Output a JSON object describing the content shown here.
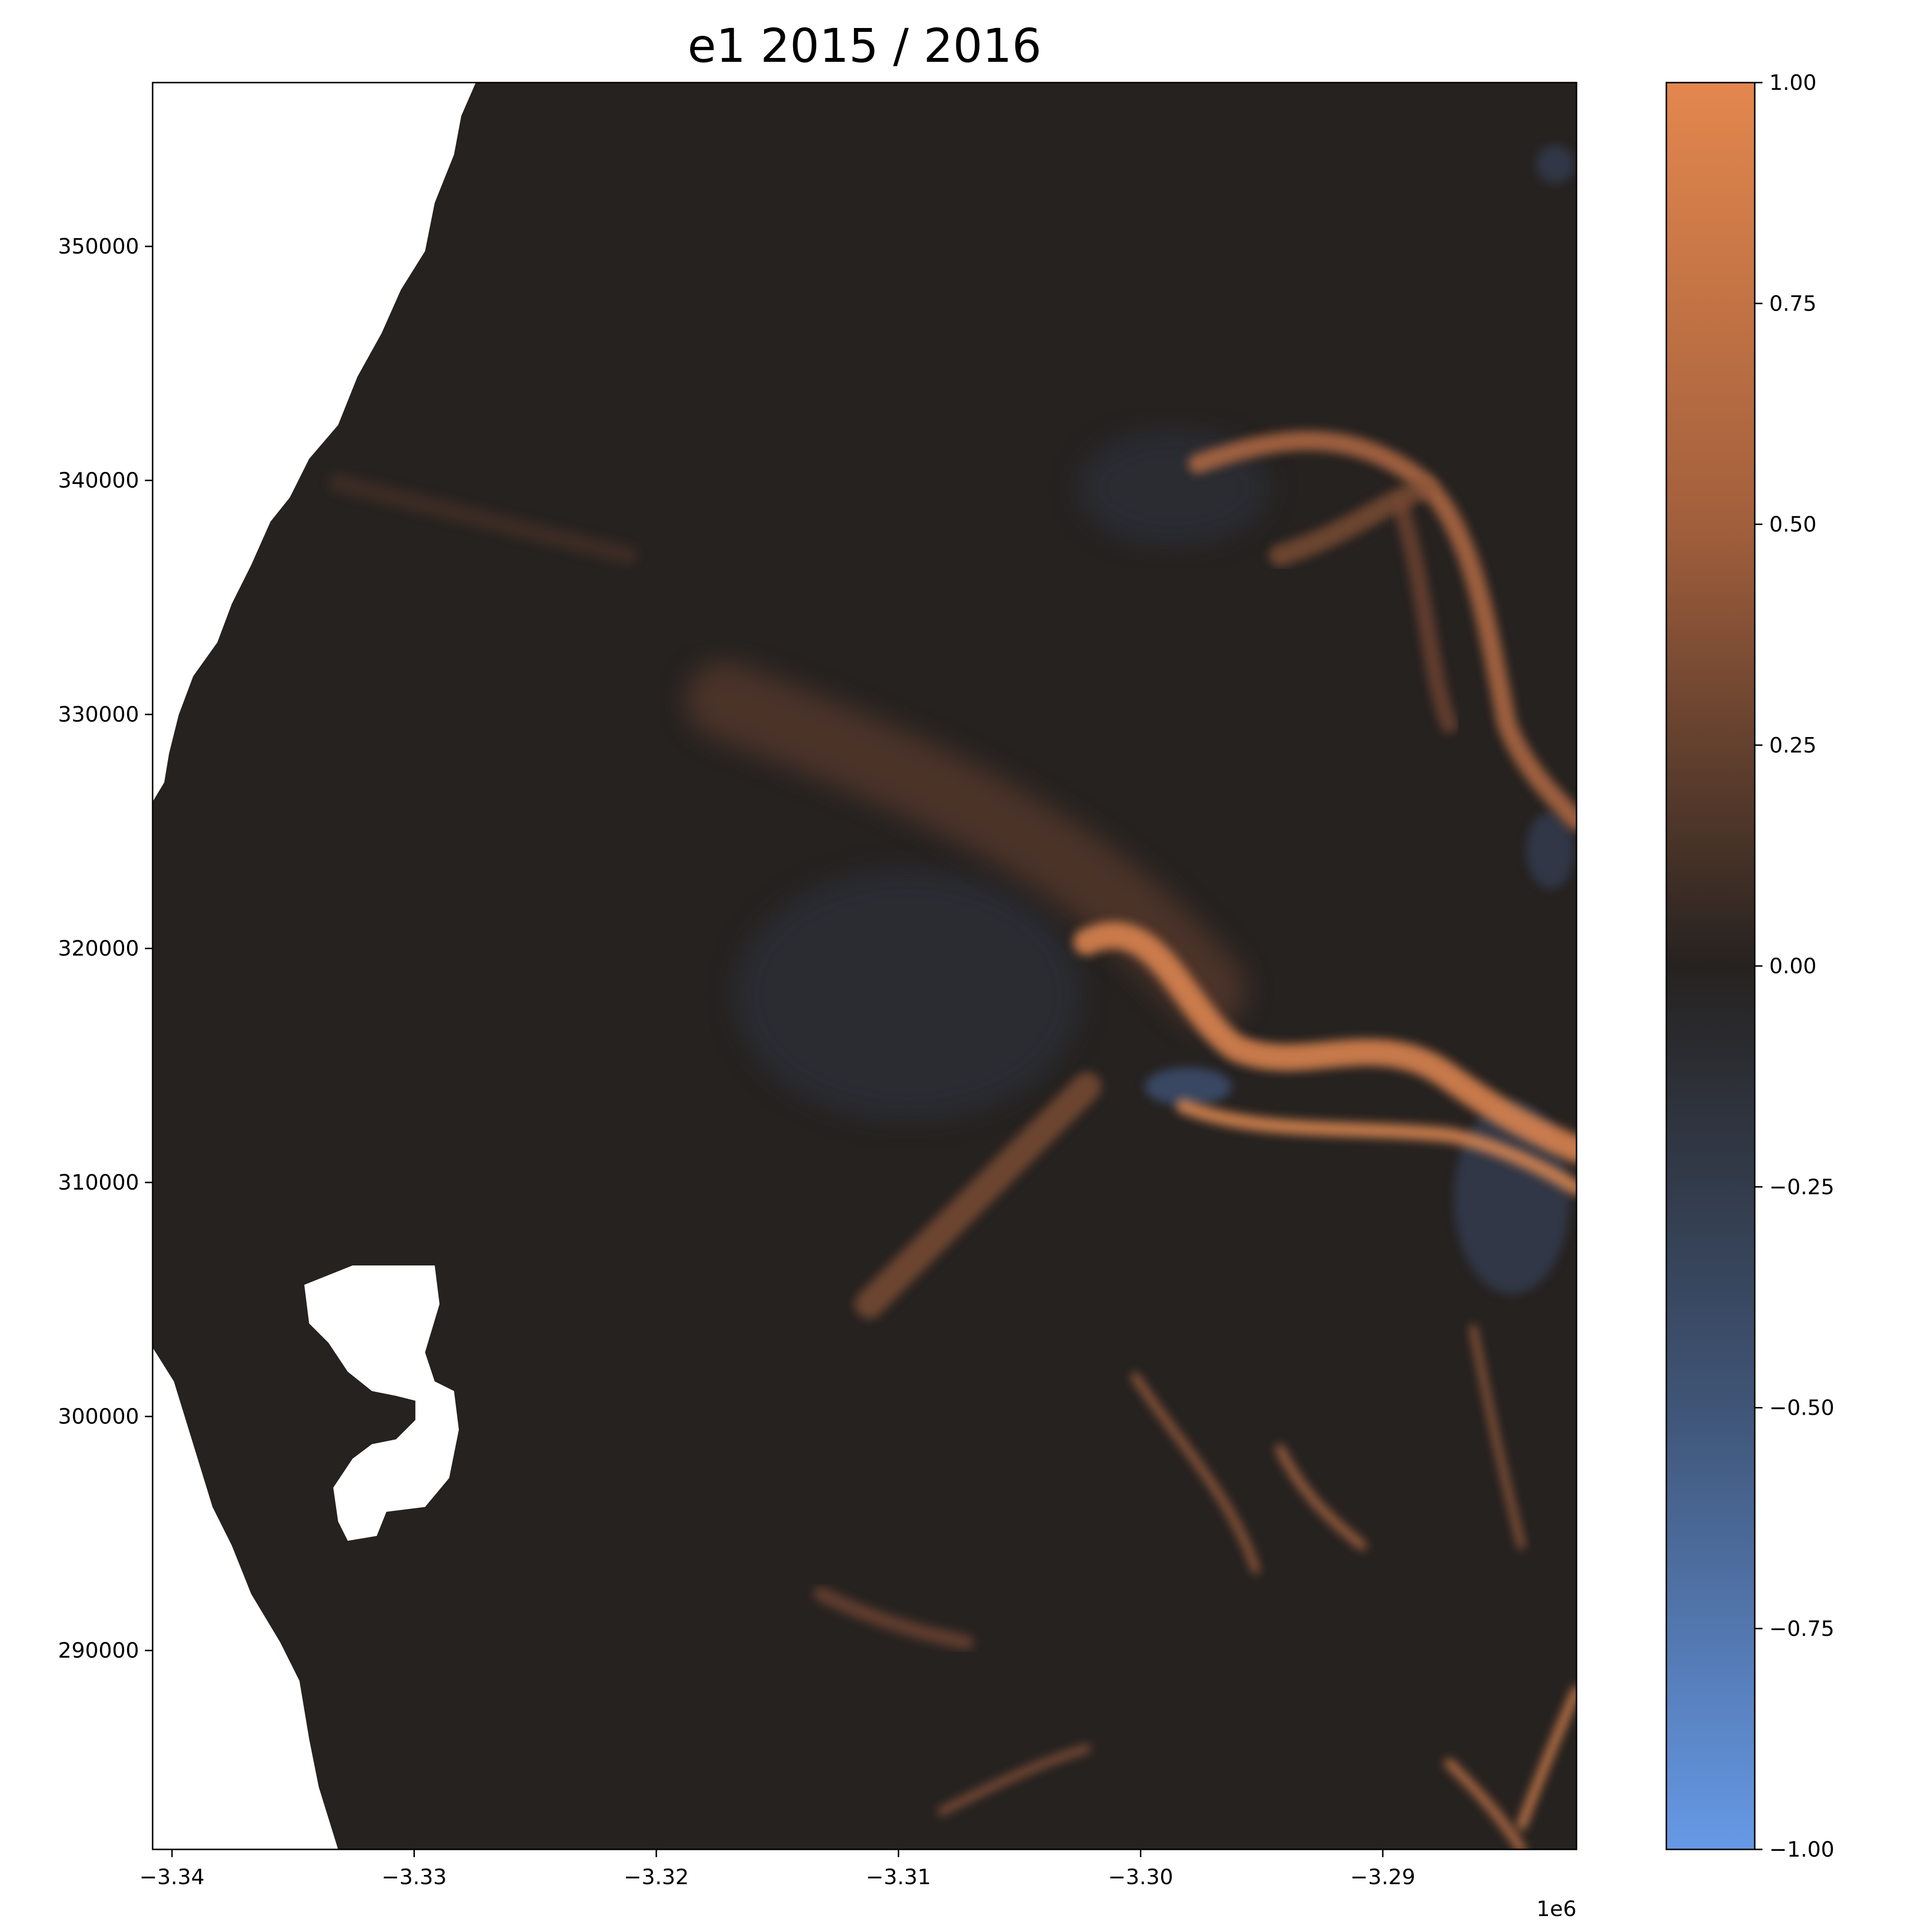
{
  "chart_data": {
    "type": "heatmap",
    "title": "e1 2015 / 2016",
    "x_ticks": [
      "−3.34",
      "−3.33",
      "−3.32",
      "−3.31",
      "−3.30",
      "−3.29"
    ],
    "x_tick_values": [
      -3.34,
      -3.33,
      -3.32,
      -3.31,
      -3.3,
      -3.29
    ],
    "x_offset_label": "1e6",
    "xlim": [
      -3.3408,
      -3.282
    ],
    "y_ticks": [
      "350000",
      "340000",
      "330000",
      "320000",
      "310000",
      "300000",
      "290000"
    ],
    "y_tick_values": [
      350000,
      340000,
      330000,
      320000,
      310000,
      300000,
      290000
    ],
    "ylim": [
      281500,
      357000
    ],
    "colorbar": {
      "ticks": [
        "1.00",
        "0.75",
        "0.50",
        "0.25",
        "0.00",
        "−0.25",
        "−0.50",
        "−0.75",
        "−1.00"
      ],
      "tick_values": [
        1.0,
        0.75,
        0.5,
        0.25,
        0.0,
        -0.25,
        -0.5,
        -0.75,
        -1.0
      ],
      "range": [
        -1.0,
        1.0
      ],
      "colors": {
        "max": "#e3874e",
        "mid": "#262220",
        "min": "#6699e6"
      }
    },
    "background_value_color": "#262220",
    "nodata_color": "#ffffff",
    "grid": false
  }
}
